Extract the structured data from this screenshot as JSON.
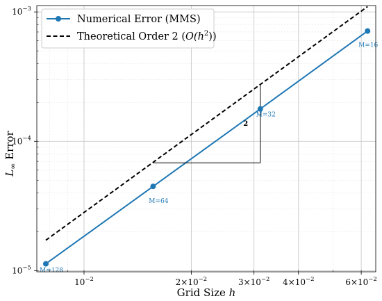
{
  "chart_data": {
    "type": "line",
    "xscale": "log",
    "yscale": "log",
    "xlabel": "Grid Size",
    "xlabel_var": "h",
    "ylabel": "Error",
    "ylabel_var": "L",
    "ylabel_sub": "∞",
    "xlim": [
      0.00737,
      0.0659
    ],
    "ylim": [
      9.8e-06,
      0.00112
    ],
    "grid": true,
    "legend_position": "top-left",
    "x_ticks": [
      {
        "value": 0.01,
        "base": "10",
        "exp": "−2",
        "prefix": ""
      },
      {
        "value": 0.02,
        "base": "10",
        "exp": "−2",
        "prefix": "2×"
      },
      {
        "value": 0.03,
        "base": "10",
        "exp": "−2",
        "prefix": "3×"
      },
      {
        "value": 0.04,
        "base": "10",
        "exp": "−2",
        "prefix": "4×"
      },
      {
        "value": 0.06,
        "base": "10",
        "exp": "−2",
        "prefix": "6×"
      }
    ],
    "y_ticks": [
      {
        "value": 1e-05,
        "base": "10",
        "exp": "−5"
      },
      {
        "value": 0.0001,
        "base": "10",
        "exp": "−4"
      },
      {
        "value": 0.001,
        "base": "10",
        "exp": "−3"
      }
    ],
    "series": [
      {
        "name": "Numerical Error (MMS)",
        "color": "#1f77b4",
        "style": "solid-markers",
        "x": [
          0.0078125,
          0.015625,
          0.03125,
          0.0625
        ],
        "y": [
          1.13e-05,
          4.48e-05,
          0.000178,
          0.000712
        ],
        "point_labels": [
          "M=128",
          "M=64",
          "M=32",
          "M=16"
        ]
      },
      {
        "name_prefix": "Theoretical Order 2 (",
        "name_math": "O(h",
        "name_sup": "2",
        "name_suffix": "))",
        "color": "#000000",
        "style": "dashed",
        "x": [
          0.0078125,
          0.0625
        ],
        "y": [
          1.72e-05,
          0.0011
        ]
      }
    ],
    "slope_triangle": {
      "x": [
        0.015625,
        0.03125
      ],
      "y": [
        6.82e-05,
        0.000273
      ],
      "label": "2",
      "color": "#000000"
    }
  }
}
